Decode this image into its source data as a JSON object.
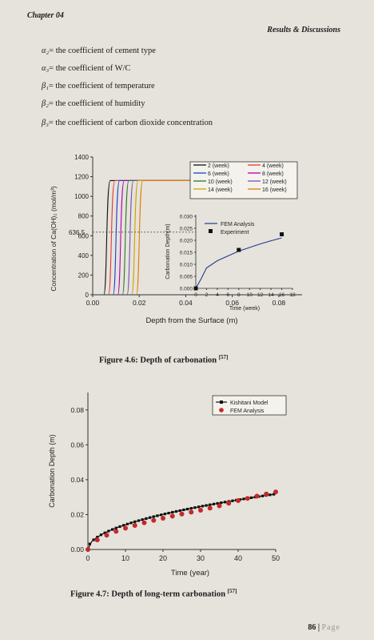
{
  "header": {
    "chapter": "Chapter 04",
    "section": "Results & Discussions"
  },
  "definitions": [
    {
      "symbol": "α₂",
      "text": "= the coefficient of cement type"
    },
    {
      "symbol": "α₃",
      "text": "= the coefficient of W/C"
    },
    {
      "symbol": "β₁",
      "text": "= the coefficient of temperature"
    },
    {
      "symbol": "β₂",
      "text": "= the coefficient of humidity"
    },
    {
      "symbol": "β₃",
      "text": "= the coefficient of carbon dioxide concentration"
    }
  ],
  "figure1": {
    "caption": "Figure 4.6: Depth of carbonation",
    "ref": "[57]",
    "inset_ticks_y": [
      "0.030",
      "0.025",
      "0.020",
      "0.015",
      "0.010",
      "0.005",
      "0.000"
    ],
    "inset_ticks_x": [
      "0",
      "2",
      "4",
      "6",
      "8",
      "10",
      "12",
      "14",
      "16",
      "18"
    ],
    "main_ticks_y": [
      "1400",
      "1200",
      "1000",
      "800",
      "600",
      "400",
      "200",
      "0"
    ],
    "main_ticks_x": [
      "0.00",
      "0.02",
      "0.04",
      "0.06",
      "0.08"
    ]
  },
  "figure2": {
    "caption": "Figure 4.7: Depth of long-term carbonation",
    "ref": "[57]",
    "ticks_y": [
      "0.08",
      "0.06",
      "0.04",
      "0.02",
      "0.00"
    ],
    "ticks_x": [
      "0",
      "10",
      "20",
      "30",
      "40",
      "50"
    ]
  },
  "chart_data": [
    {
      "type": "line",
      "title": "",
      "xlabel": "Depth from the Surface (m)",
      "ylabel": "Concentration of Ca(OH)₂ (mol/m³)",
      "xlim": [
        0,
        0.09
      ],
      "ylim": [
        0,
        1400
      ],
      "annotation": "636.5",
      "legend_position": "top-right",
      "series": [
        {
          "name": "2 (week)",
          "color": "#111111",
          "plateau": 1160,
          "drop_at": 0.0065
        },
        {
          "name": "4 (week)",
          "color": "#e53935",
          "plateau": 1160,
          "drop_at": 0.0085
        },
        {
          "name": "6 (week)",
          "color": "#1e40d0",
          "plateau": 1160,
          "drop_at": 0.0105
        },
        {
          "name": "8 (week)",
          "color": "#b000b0",
          "plateau": 1160,
          "drop_at": 0.0125
        },
        {
          "name": "10 (week)",
          "color": "#2a7a2a",
          "plateau": 1160,
          "drop_at": 0.0145
        },
        {
          "name": "12 (week)",
          "color": "#7b4fb0",
          "plateau": 1160,
          "drop_at": 0.0165
        },
        {
          "name": "14 (week)",
          "color": "#c7a400",
          "plateau": 1160,
          "drop_at": 0.0185
        },
        {
          "name": "16 (week)",
          "color": "#e07a00",
          "plateau": 1160,
          "drop_at": 0.0205
        }
      ]
    },
    {
      "type": "line",
      "title": "",
      "xlabel": "Time (week)",
      "ylabel": "Carbonation Depth(m)",
      "xlim": [
        0,
        18
      ],
      "ylim": [
        0,
        0.03
      ],
      "legend_position": "top",
      "series": [
        {
          "name": "FEM Analysis",
          "color": "#1e3a8a",
          "x": [
            0,
            1,
            2,
            4,
            6,
            8,
            10,
            12,
            14,
            16
          ],
          "y": [
            0,
            0.004,
            0.0085,
            0.0115,
            0.0135,
            0.0155,
            0.017,
            0.0185,
            0.0198,
            0.021
          ]
        },
        {
          "name": "Experiment",
          "color": "#111111",
          "x": [
            0,
            8,
            16
          ],
          "y": [
            0,
            0.016,
            0.0225
          ]
        }
      ]
    },
    {
      "type": "line",
      "title": "",
      "xlabel": "Time (year)",
      "ylabel": "Carbonation Depth (m)",
      "xlim": [
        0,
        50
      ],
      "ylim": [
        0,
        0.09
      ],
      "legend_position": "top-right",
      "series": [
        {
          "name": "Kishitani Model",
          "color": "#111111",
          "x": [
            0,
            1,
            2,
            4,
            6,
            8,
            10,
            12,
            15,
            18,
            20,
            25,
            30,
            35,
            40,
            45,
            50
          ],
          "y": [
            0,
            0.0045,
            0.0064,
            0.009,
            0.011,
            0.0127,
            0.0142,
            0.0156,
            0.0174,
            0.0191,
            0.0201,
            0.0225,
            0.0246,
            0.0266,
            0.0284,
            0.0302,
            0.0318
          ]
        },
        {
          "name": "FEM Analysis",
          "color": "#c62828",
          "x": [
            0,
            2.5,
            5,
            7.5,
            10,
            12.5,
            15,
            17.5,
            20,
            22.5,
            25,
            27.5,
            30,
            32.5,
            35,
            37.5,
            40,
            42.5,
            45,
            47.5,
            50
          ],
          "y": [
            0,
            0.0055,
            0.0082,
            0.0104,
            0.0122,
            0.0138,
            0.0153,
            0.0167,
            0.0179,
            0.0191,
            0.0203,
            0.0214,
            0.0225,
            0.0237,
            0.025,
            0.0265,
            0.028,
            0.0293,
            0.0306,
            0.0318,
            0.033
          ]
        }
      ]
    }
  ]
}
